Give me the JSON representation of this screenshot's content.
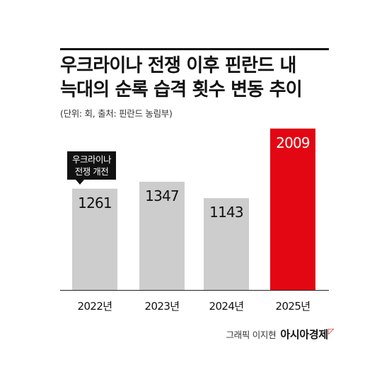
{
  "title": {
    "line1": "우크라이나 전쟁 이후 핀란드 내",
    "line2": "늑대의 순록 습격 횟수 변동 추이"
  },
  "subtitle": "(단위: 회, 출처: 핀란드 농림부)",
  "annotation": {
    "line1": "우크라이나",
    "line2": "전쟁 개전"
  },
  "credit": {
    "text": "그래픽 이지현",
    "brand": "아시아경제"
  },
  "chart_data": {
    "type": "bar",
    "categories": [
      "2022년",
      "2023년",
      "2024년",
      "2025년"
    ],
    "values": [
      1261,
      1347,
      1143,
      2009
    ],
    "ylim": [
      0,
      2200
    ],
    "grid": false,
    "colors": {
      "default": "#cdcdcd",
      "highlight": "#e30613"
    },
    "highlight_index": 3
  }
}
